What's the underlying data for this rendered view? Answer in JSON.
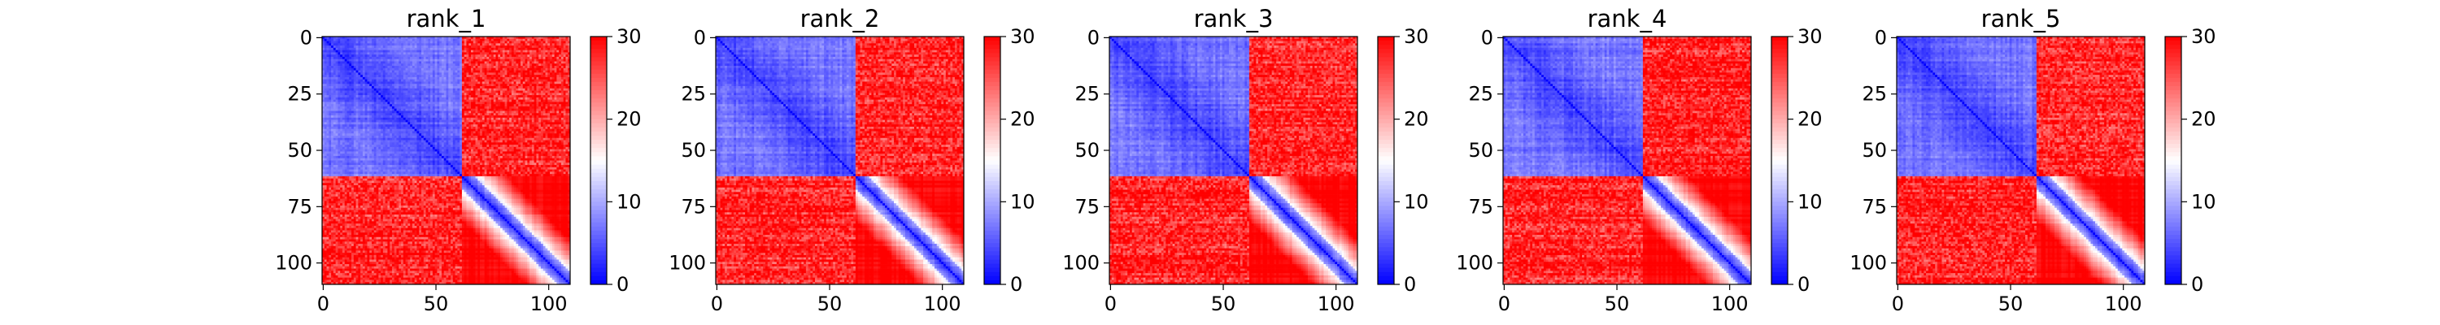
{
  "chart_data": [
    {
      "type": "heatmap",
      "title": "rank_1",
      "matrix_size": 110,
      "x_ticks": [
        0,
        50,
        100
      ],
      "y_ticks": [
        0,
        25,
        50,
        75,
        100
      ],
      "colorbar": {
        "min": 0,
        "max": 30,
        "ticks": [
          0,
          10,
          20,
          30
        ],
        "colormap": [
          "#0000ff",
          "#ffffff",
          "#ff0000"
        ]
      },
      "domains": [
        [
          0,
          62
        ],
        [
          62,
          110
        ]
      ],
      "noise_seed": 11
    },
    {
      "type": "heatmap",
      "title": "rank_2",
      "matrix_size": 110,
      "x_ticks": [
        0,
        50,
        100
      ],
      "y_ticks": [
        0,
        25,
        50,
        75,
        100
      ],
      "colorbar": {
        "min": 0,
        "max": 30,
        "ticks": [
          0,
          10,
          20,
          30
        ],
        "colormap": [
          "#0000ff",
          "#ffffff",
          "#ff0000"
        ]
      },
      "domains": [
        [
          0,
          62
        ],
        [
          62,
          110
        ]
      ],
      "noise_seed": 23
    },
    {
      "type": "heatmap",
      "title": "rank_3",
      "matrix_size": 110,
      "x_ticks": [
        0,
        50,
        100
      ],
      "y_ticks": [
        0,
        25,
        50,
        75,
        100
      ],
      "colorbar": {
        "min": 0,
        "max": 30,
        "ticks": [
          0,
          10,
          20,
          30
        ],
        "colormap": [
          "#0000ff",
          "#ffffff",
          "#ff0000"
        ]
      },
      "domains": [
        [
          0,
          62
        ],
        [
          62,
          110
        ]
      ],
      "noise_seed": 37
    },
    {
      "type": "heatmap",
      "title": "rank_4",
      "matrix_size": 110,
      "x_ticks": [
        0,
        50,
        100
      ],
      "y_ticks": [
        0,
        25,
        50,
        75,
        100
      ],
      "colorbar": {
        "min": 0,
        "max": 30,
        "ticks": [
          0,
          10,
          20,
          30
        ],
        "colormap": [
          "#0000ff",
          "#ffffff",
          "#ff0000"
        ]
      },
      "domains": [
        [
          0,
          62
        ],
        [
          62,
          110
        ]
      ],
      "noise_seed": 41
    },
    {
      "type": "heatmap",
      "title": "rank_5",
      "matrix_size": 110,
      "x_ticks": [
        0,
        50,
        100
      ],
      "y_ticks": [
        0,
        25,
        50,
        75,
        100
      ],
      "colorbar": {
        "min": 0,
        "max": 30,
        "ticks": [
          0,
          10,
          20,
          30
        ],
        "colormap": [
          "#0000ff",
          "#ffffff",
          "#ff0000"
        ]
      },
      "domains": [
        [
          0,
          62
        ],
        [
          62,
          110
        ]
      ],
      "noise_seed": 53
    }
  ]
}
